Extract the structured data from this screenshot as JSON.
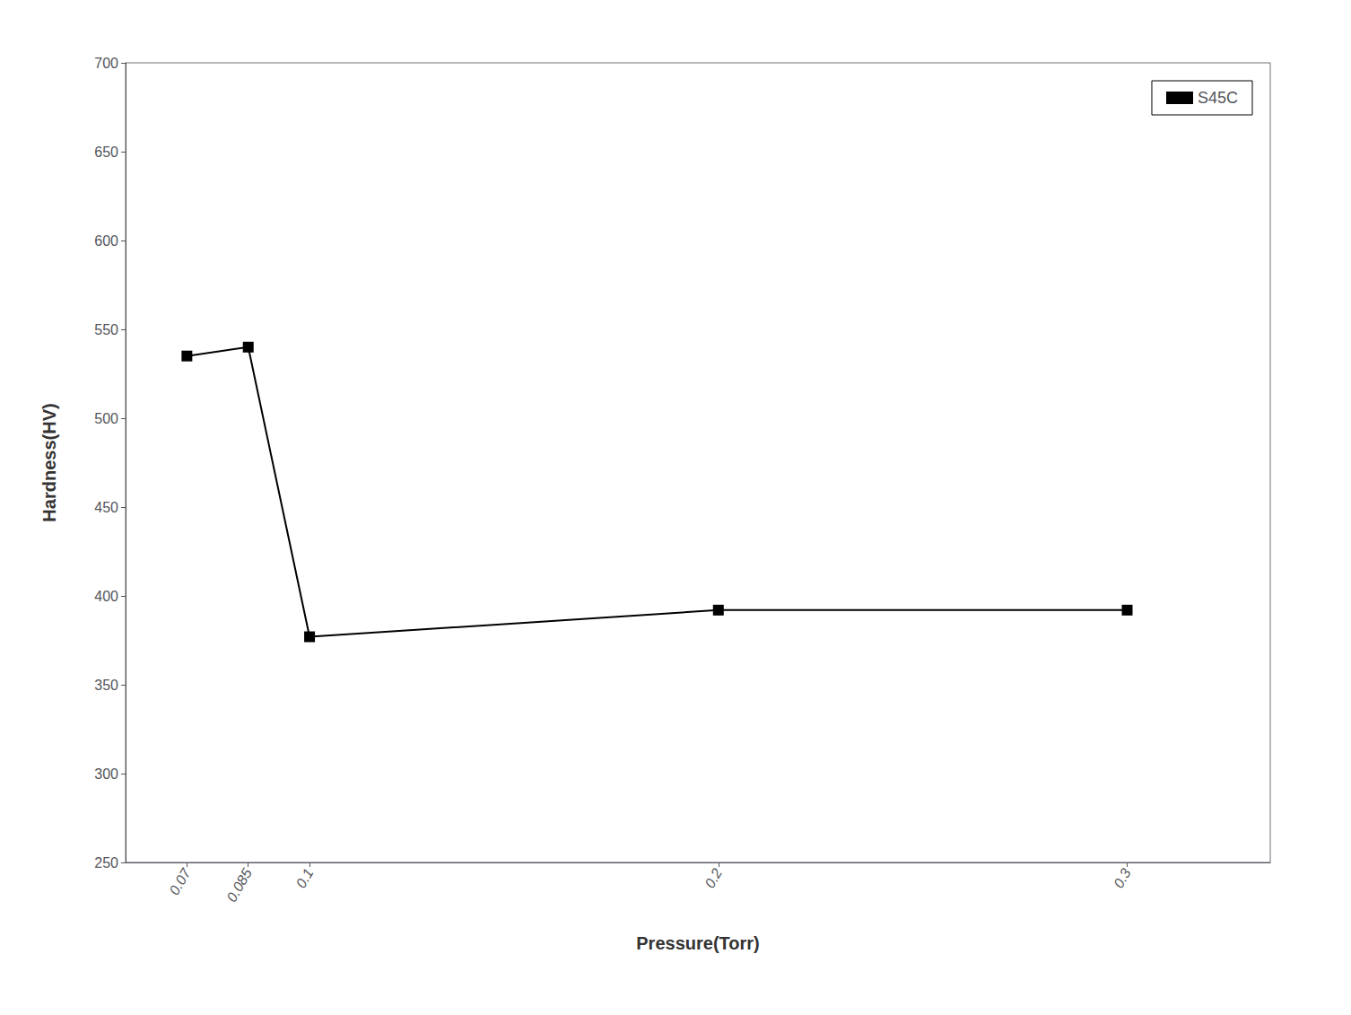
{
  "chart_data": {
    "type": "line",
    "x": [
      0.07,
      0.085,
      0.1,
      0.2,
      0.3
    ],
    "series": [
      {
        "name": "S45C",
        "color": "#000000",
        "marker": "square",
        "values": [
          535,
          540,
          377,
          392,
          392
        ]
      }
    ],
    "xlabel": "Pressure(Torr)",
    "ylabel": "Hardness(HV)",
    "xlim": [
      0.055,
      0.335
    ],
    "xticks": [
      0.07,
      0.085,
      0.1,
      0.2,
      0.3
    ],
    "ylim": [
      250,
      700
    ],
    "yticks": [
      250,
      300,
      350,
      400,
      450,
      500,
      550,
      600,
      650,
      700
    ],
    "legend": "upper right",
    "grid": false
  }
}
